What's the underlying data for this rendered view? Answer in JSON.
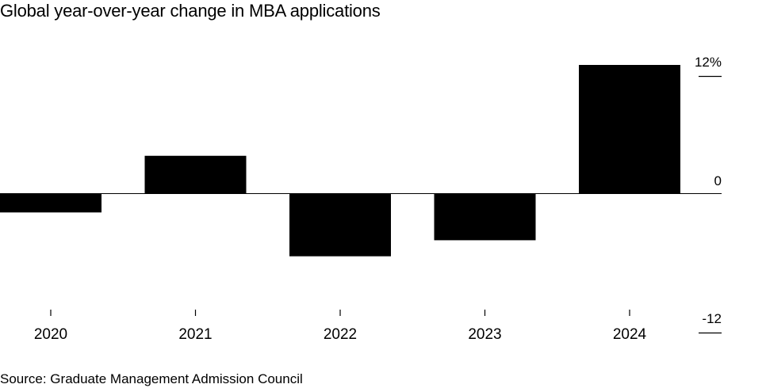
{
  "chart_data": {
    "type": "bar",
    "title": "Global year-over-year change in MBA applications",
    "source": "Source: Graduate Management Admission Council",
    "categories": [
      "2020",
      "2021",
      "2022",
      "2023",
      "2024"
    ],
    "values": [
      -1.8,
      3.5,
      -5.9,
      -4.4,
      12.0
    ],
    "xlabel": "",
    "ylabel": "",
    "ylim": [
      -12,
      12
    ],
    "y_ticks": [
      {
        "value": 12,
        "label": "12%"
      },
      {
        "value": 0,
        "label": "0"
      },
      {
        "value": -12,
        "label": "-12"
      }
    ],
    "y_axis_side": "right",
    "grid": false,
    "bar_color": "#000000"
  }
}
